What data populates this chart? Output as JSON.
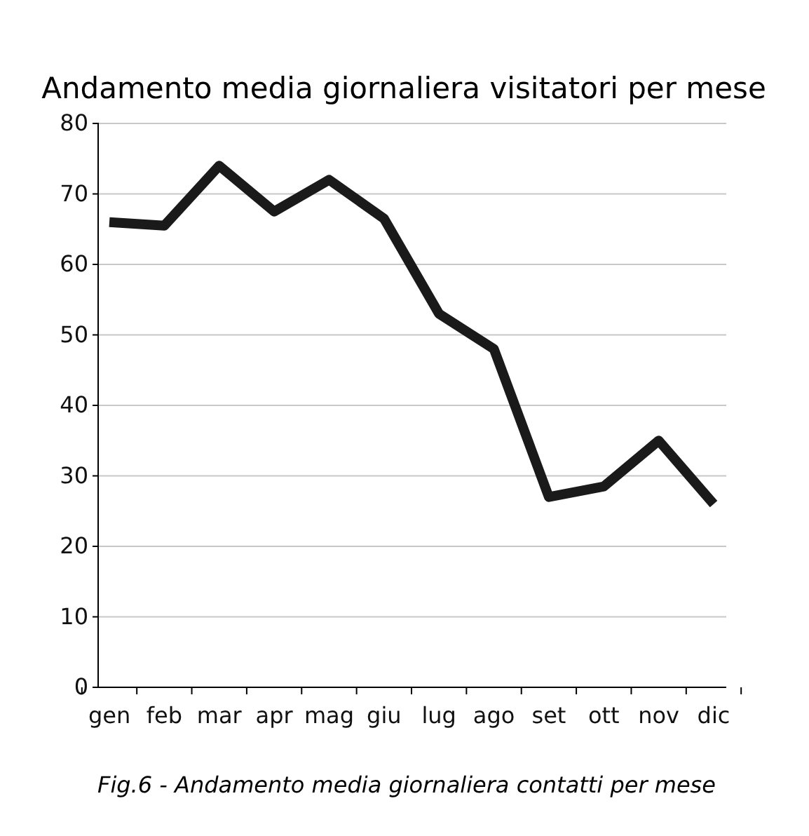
{
  "chart_data": {
    "type": "line",
    "title": "Andamento media giornaliera visitatori per mese",
    "categories": [
      "gen",
      "feb",
      "mar",
      "apr",
      "mag",
      "giu",
      "lug",
      "ago",
      "set",
      "ott",
      "nov",
      "dic"
    ],
    "series": [
      {
        "color": "#1a1a1a",
        "values": [
          66,
          65.5,
          74,
          67.5,
          72,
          66.5,
          53,
          48,
          27,
          28.5,
          35,
          26
        ]
      }
    ],
    "ylim": [
      0,
      80
    ],
    "yticks": [
      0,
      10,
      20,
      30,
      40,
      50,
      60,
      70,
      80
    ],
    "grid": "y",
    "marker": "none",
    "line_style": "solid",
    "annotations": [
      "Fig.6 - Andamento media giornaliera contatti per mese"
    ]
  }
}
